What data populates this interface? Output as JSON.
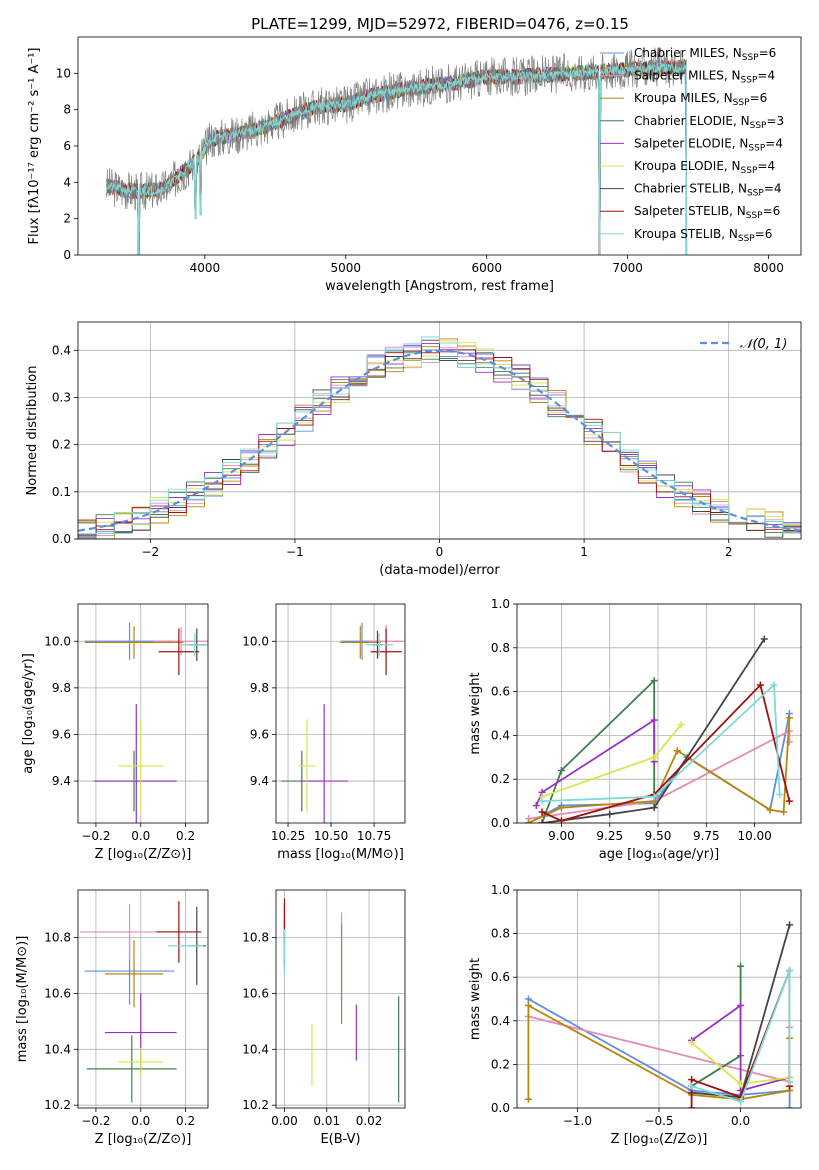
{
  "figure": {
    "title": "PLATE=1299, MJD=52972, FIBERID=0476, z=0.15"
  },
  "colors": {
    "Chabrier MILES": "#5b8fe0",
    "Salpeter MILES": "#e88ab5",
    "Kroupa MILES": "#b8860b",
    "Chabrier ELODIE": "#3f7f4f",
    "Salpeter ELODIE": "#9b30c0",
    "Kroupa ELODIE": "#d4e84a",
    "Chabrier STELIB": "#444444",
    "Salpeter STELIB": "#a01010",
    "Kroupa STELIB": "#7fd9d9",
    "data": "#808080",
    "fit_orange": "#e07a2a",
    "gaussian": "#5b8fe0"
  },
  "chart_data": [
    {
      "id": "spectrum",
      "type": "line",
      "xlabel": "wavelength [Angstrom, rest frame]",
      "ylabel": "Flux [fλ10⁻¹⁷ erg cm⁻² s⁻¹ A⁻¹]",
      "xlim": [
        3100,
        8230
      ],
      "ylim": [
        0,
        12
      ],
      "xticks": [
        4000,
        5000,
        6000,
        7000,
        8000
      ],
      "yticks": [
        0,
        2,
        4,
        6,
        8,
        10
      ],
      "grid": false,
      "legend_placement": "top-right",
      "legend": [
        {
          "label": "Chabrier MILES, N",
          "sub": "SSP",
          "tail": "=6",
          "model": "Chabrier MILES"
        },
        {
          "label": "Salpeter MILES, N",
          "sub": "SSP",
          "tail": "=4",
          "model": "Salpeter MILES"
        },
        {
          "label": "Kroupa MILES, N",
          "sub": "SSP",
          "tail": "=6",
          "model": "Kroupa MILES"
        },
        {
          "label": "Chabrier ELODIE, N",
          "sub": "SSP",
          "tail": "=3",
          "model": "Chabrier ELODIE"
        },
        {
          "label": "Salpeter ELODIE, N",
          "sub": "SSP",
          "tail": "=4",
          "model": "Salpeter ELODIE"
        },
        {
          "label": "Kroupa ELODIE, N",
          "sub": "SSP",
          "tail": "=4",
          "model": "Kroupa ELODIE"
        },
        {
          "label": "Chabrier STELIB, N",
          "sub": "SSP",
          "tail": "=4",
          "model": "Chabrier STELIB"
        },
        {
          "label": "Salpeter STELIB, N",
          "sub": "SSP",
          "tail": "=6",
          "model": "Salpeter STELIB"
        },
        {
          "label": "Kroupa STELIB, N",
          "sub": "SSP",
          "tail": "=6",
          "model": "Kroupa STELIB"
        }
      ],
      "continuum": [
        [
          3300,
          3.8
        ],
        [
          3500,
          3.5
        ],
        [
          3700,
          3.6
        ],
        [
          3850,
          4.6
        ],
        [
          3950,
          5.3
        ],
        [
          4050,
          6.4
        ],
        [
          4200,
          6.6
        ],
        [
          4400,
          7.0
        ],
        [
          4600,
          7.6
        ],
        [
          4800,
          8.2
        ],
        [
          5000,
          8.3
        ],
        [
          5200,
          8.8
        ],
        [
          5400,
          9.1
        ],
        [
          5600,
          9.3
        ],
        [
          5800,
          9.5
        ],
        [
          6000,
          9.8
        ],
        [
          6200,
          9.8
        ],
        [
          6400,
          9.9
        ],
        [
          6600,
          10.0
        ],
        [
          6800,
          10.1
        ],
        [
          7000,
          10.2
        ],
        [
          7200,
          10.3
        ],
        [
          7400,
          10.3
        ]
      ],
      "dips": [
        [
          3530,
          0
        ],
        [
          3933,
          2.0
        ],
        [
          3968,
          2.2
        ],
        [
          6800,
          0
        ],
        [
          7420,
          0
        ]
      ]
    },
    {
      "id": "residuals",
      "type": "histogram",
      "xlabel": "(data-model)/error",
      "ylabel": "Normed distribution",
      "xlim": [
        -2.5,
        2.5
      ],
      "ylim": [
        0,
        0.46
      ],
      "xticks": [
        -2,
        -1,
        0,
        1,
        2
      ],
      "yticks": [
        0.0,
        0.1,
        0.2,
        0.3,
        0.4
      ],
      "grid": true,
      "legend_placement": "top-right",
      "legend_label": "𝒩(0, 1)",
      "bin_width": 0.125
    },
    {
      "id": "z-age",
      "type": "errorbar",
      "xlabel": "Z [log₁₀(Z/Z⊙)]",
      "ylabel": "age  [log₁₀(age/yr)]",
      "xlim": [
        -0.28,
        0.3
      ],
      "ylim": [
        9.22,
        10.16
      ],
      "xticks": [
        -0.2,
        0.0,
        0.2
      ],
      "yticks": [
        9.4,
        9.6,
        9.8,
        10.0
      ],
      "grid": true,
      "points": [
        {
          "model": "Chabrier MILES",
          "x": -0.05,
          "y": 10.0,
          "xerr": 0.2,
          "yerr": 0.08
        },
        {
          "model": "Salpeter MILES",
          "x": 0.18,
          "y": 10.0,
          "xerr": 0.12,
          "yerr": 0.06
        },
        {
          "model": "Kroupa MILES",
          "x": -0.03,
          "y": 9.995,
          "xerr": 0.22,
          "yerr": 0.07
        },
        {
          "model": "Chabrier ELODIE",
          "x": -0.03,
          "y": 9.4,
          "xerr": 0.18,
          "yerr": 0.13
        },
        {
          "model": "Salpeter ELODIE",
          "x": -0.02,
          "y": 9.4,
          "xerr": 0.18,
          "yerr": 0.33
        },
        {
          "model": "Kroupa ELODIE",
          "x": 0.0,
          "y": 9.465,
          "xerr": 0.1,
          "yerr": 0.2
        },
        {
          "model": "Chabrier STELIB",
          "x": 0.25,
          "y": 9.985,
          "xerr": 0.04,
          "yerr": 0.07
        },
        {
          "model": "Salpeter STELIB",
          "x": 0.17,
          "y": 9.955,
          "xerr": 0.09,
          "yerr": 0.1
        },
        {
          "model": "Kroupa STELIB",
          "x": 0.24,
          "y": 9.985,
          "xerr": 0.06,
          "yerr": 0.05
        }
      ]
    },
    {
      "id": "mass-age",
      "type": "errorbar",
      "xlabel": "mass [log₁₀(M/M⊙)]",
      "ylabel": "",
      "xlim": [
        10.18,
        10.93
      ],
      "ylim": [
        9.22,
        10.16
      ],
      "xticks": [
        10.25,
        10.5,
        10.75
      ],
      "yticks": [
        9.4,
        9.6,
        9.8,
        10.0
      ],
      "grid": true,
      "points": [
        {
          "model": "Chabrier MILES",
          "x": 10.68,
          "y": 10.0,
          "xerr": 0.12,
          "yerr": 0.08
        },
        {
          "model": "Salpeter MILES",
          "x": 10.82,
          "y": 10.0,
          "xerr": 0.1,
          "yerr": 0.07
        },
        {
          "model": "Kroupa MILES",
          "x": 10.67,
          "y": 9.995,
          "xerr": 0.12,
          "yerr": 0.07
        },
        {
          "model": "Chabrier ELODIE",
          "x": 10.33,
          "y": 9.4,
          "xerr": 0.12,
          "yerr": 0.13
        },
        {
          "model": "Salpeter ELODIE",
          "x": 10.46,
          "y": 9.4,
          "xerr": 0.14,
          "yerr": 0.33
        },
        {
          "model": "Kroupa ELODIE",
          "x": 10.36,
          "y": 9.465,
          "xerr": 0.05,
          "yerr": 0.2
        },
        {
          "model": "Chabrier STELIB",
          "x": 10.77,
          "y": 9.985,
          "xerr": 0.03,
          "yerr": 0.06
        },
        {
          "model": "Salpeter STELIB",
          "x": 10.82,
          "y": 9.955,
          "xerr": 0.09,
          "yerr": 0.1
        },
        {
          "model": "Kroupa STELIB",
          "x": 10.78,
          "y": 9.985,
          "xerr": 0.08,
          "yerr": 0.05
        }
      ]
    },
    {
      "id": "age-weight",
      "type": "line",
      "xlabel": "age  [log₁₀(age/yr)]",
      "ylabel": "mass weight",
      "xlim": [
        8.77,
        10.24
      ],
      "ylim": [
        0,
        1.0
      ],
      "xticks": [
        9.0,
        9.25,
        9.5,
        9.75,
        10.0
      ],
      "yticks": [
        0.0,
        0.2,
        0.4,
        0.6,
        0.8,
        1.0
      ],
      "grid": true,
      "series": [
        {
          "model": "Chabrier MILES",
          "points": [
            [
              8.83,
              0.0
            ],
            [
              9.0,
              0.08
            ],
            [
              9.48,
              0.09
            ],
            [
              9.65,
              0.3
            ],
            [
              10.08,
              0.06
            ],
            [
              10.18,
              0.5
            ]
          ]
        },
        {
          "model": "Salpeter MILES",
          "points": [
            [
              8.83,
              0.02
            ],
            [
              9.48,
              0.1
            ],
            [
              10.18,
              0.42
            ],
            [
              10.18,
              0.37
            ]
          ]
        },
        {
          "model": "Kroupa MILES",
          "points": [
            [
              8.83,
              0.0
            ],
            [
              9.0,
              0.07
            ],
            [
              9.48,
              0.1
            ],
            [
              9.6,
              0.33
            ],
            [
              10.08,
              0.06
            ],
            [
              10.15,
              0.05
            ],
            [
              10.18,
              0.48
            ]
          ]
        },
        {
          "model": "Chabrier ELODIE",
          "points": [
            [
              8.9,
              0.0
            ],
            [
              9.0,
              0.24
            ],
            [
              9.48,
              0.65
            ],
            [
              9.48,
              0.12
            ]
          ]
        },
        {
          "model": "Salpeter ELODIE",
          "points": [
            [
              8.87,
              0.08
            ],
            [
              8.9,
              0.14
            ],
            [
              9.48,
              0.47
            ],
            [
              9.48,
              0.28
            ]
          ]
        },
        {
          "model": "Kroupa ELODIE",
          "points": [
            [
              8.9,
              0.12
            ],
            [
              9.48,
              0.3
            ],
            [
              9.62,
              0.45
            ]
          ]
        },
        {
          "model": "Chabrier STELIB",
          "points": [
            [
              8.9,
              0.0
            ],
            [
              9.25,
              0.04
            ],
            [
              9.48,
              0.07
            ],
            [
              10.05,
              0.84
            ]
          ]
        },
        {
          "model": "Salpeter STELIB",
          "points": [
            [
              8.9,
              0.05
            ],
            [
              9.0,
              0.01
            ],
            [
              9.48,
              0.13
            ],
            [
              10.03,
              0.63
            ],
            [
              10.18,
              0.1
            ]
          ]
        },
        {
          "model": "Kroupa STELIB",
          "points": [
            [
              8.9,
              0.1
            ],
            [
              9.48,
              0.12
            ],
            [
              10.1,
              0.63
            ],
            [
              10.13,
              0.13
            ]
          ]
        }
      ]
    },
    {
      "id": "z-mass",
      "type": "errorbar",
      "xlabel": "Z [log₁₀(Z/Z⊙)]",
      "ylabel": "mass [log₁₀(M/M⊙)]",
      "xlim": [
        -0.28,
        0.3
      ],
      "ylim": [
        10.19,
        10.97
      ],
      "xticks": [
        -0.2,
        0.0,
        0.2
      ],
      "yticks": [
        10.2,
        10.4,
        10.6,
        10.8
      ],
      "grid": true,
      "points": [
        {
          "model": "Chabrier MILES",
          "x": -0.05,
          "y": 10.68,
          "xerr": 0.2,
          "yerr": 0.12
        },
        {
          "model": "Salpeter MILES",
          "x": -0.05,
          "y": 10.82,
          "xerr": 0.22,
          "yerr": 0.1
        },
        {
          "model": "Kroupa MILES",
          "x": -0.03,
          "y": 10.67,
          "xerr": 0.13,
          "yerr": 0.12
        },
        {
          "model": "Chabrier ELODIE",
          "x": -0.04,
          "y": 10.33,
          "xerr": 0.2,
          "yerr": 0.12
        },
        {
          "model": "Salpeter ELODIE",
          "x": 0.0,
          "y": 10.46,
          "xerr": 0.16,
          "yerr": 0.14
        },
        {
          "model": "Kroupa ELODIE",
          "x": 0.0,
          "y": 10.355,
          "xerr": 0.1,
          "yerr": 0.05
        },
        {
          "model": "Chabrier STELIB",
          "x": 0.25,
          "y": 10.77,
          "xerr": 0.04,
          "yerr": 0.14
        },
        {
          "model": "Salpeter STELIB",
          "x": 0.17,
          "y": 10.82,
          "xerr": 0.1,
          "yerr": 0.11
        },
        {
          "model": "Kroupa STELIB",
          "x": 0.2,
          "y": 10.77,
          "xerr": 0.08,
          "yerr": 0.05
        }
      ]
    },
    {
      "id": "ebv-mass",
      "type": "errorbar",
      "xlabel": "E(B-V)",
      "ylabel": "",
      "xlim": [
        -0.002,
        0.0285
      ],
      "ylim": [
        10.19,
        10.97
      ],
      "xticks": [
        0.0,
        0.01,
        0.02
      ],
      "xtick_labels": [
        "0.00",
        "0.01",
        "0.02"
      ],
      "yticks": [
        10.2,
        10.4,
        10.6,
        10.8
      ],
      "grid": true,
      "points": [
        {
          "model": "Chabrier MILES",
          "x": 0.0,
          "y": 10.78,
          "xerr": 0,
          "yerr": 0.08
        },
        {
          "model": "Salpeter MILES",
          "x": 0.0135,
          "y": 10.73,
          "xerr": 0,
          "yerr": 0.16
        },
        {
          "model": "Kroupa MILES",
          "x": 0.0135,
          "y": 10.67,
          "xerr": 0,
          "yerr": 0.18
        },
        {
          "model": "Chabrier ELODIE",
          "x": 0.027,
          "y": 10.4,
          "xerr": 0,
          "yerr": 0.19
        },
        {
          "model": "Salpeter ELODIE",
          "x": 0.017,
          "y": 10.46,
          "xerr": 0,
          "yerr": 0.1
        },
        {
          "model": "Kroupa ELODIE",
          "x": 0.0065,
          "y": 10.38,
          "xerr": 0,
          "yerr": 0.11
        },
        {
          "model": "Chabrier STELIB",
          "x": 0.0,
          "y": 10.8,
          "xerr": 0,
          "yerr": 0.12
        },
        {
          "model": "Salpeter STELIB",
          "x": 0.0,
          "y": 10.86,
          "xerr": 0,
          "yerr": 0.08
        },
        {
          "model": "Kroupa STELIB",
          "x": 0.0,
          "y": 10.75,
          "xerr": 0,
          "yerr": 0.08
        }
      ]
    },
    {
      "id": "z-weight",
      "type": "line",
      "xlabel": "Z [log₁₀(Z/Z⊙)]",
      "ylabel": "mass weight",
      "xlim": [
        -1.37,
        0.37
      ],
      "ylim": [
        0,
        1.0
      ],
      "xticks": [
        -1.0,
        -0.5,
        0.0
      ],
      "yticks": [
        0.0,
        0.2,
        0.4,
        0.6,
        0.8,
        1.0
      ],
      "grid": true,
      "series": [
        {
          "model": "Chabrier MILES",
          "points": [
            [
              -1.3,
              0.5
            ],
            [
              -0.3,
              0.08
            ],
            [
              0.0,
              0.06
            ],
            [
              0.3,
              0.08
            ],
            [
              0.3,
              0.0
            ]
          ]
        },
        {
          "model": "Salpeter MILES",
          "points": [
            [
              -1.3,
              0.42
            ],
            [
              0.3,
              0.12
            ],
            [
              0.3,
              0.37
            ]
          ]
        },
        {
          "model": "Kroupa MILES",
          "points": [
            [
              -1.3,
              0.04
            ],
            [
              -1.3,
              0.47
            ],
            [
              -0.3,
              0.06
            ],
            [
              0.0,
              0.04
            ],
            [
              0.3,
              0.08
            ],
            [
              0.3,
              0.32
            ]
          ]
        },
        {
          "model": "Chabrier ELODIE",
          "points": [
            [
              -0.3,
              0.1
            ],
            [
              0.0,
              0.24
            ],
            [
              0.0,
              0.65
            ]
          ]
        },
        {
          "model": "Salpeter ELODIE",
          "points": [
            [
              -0.3,
              0.31
            ],
            [
              0.0,
              0.47
            ],
            [
              0.0,
              0.08
            ],
            [
              0.3,
              0.14
            ]
          ]
        },
        {
          "model": "Kroupa ELODIE",
          "points": [
            [
              -0.3,
              0.3
            ],
            [
              0.0,
              0.11
            ],
            [
              0.3,
              0.14
            ]
          ]
        },
        {
          "model": "Chabrier STELIB",
          "points": [
            [
              -0.3,
              0.07
            ],
            [
              0.0,
              0.05
            ],
            [
              0.3,
              0.84
            ]
          ]
        },
        {
          "model": "Salpeter STELIB",
          "points": [
            [
              -0.3,
              0.0
            ],
            [
              -0.3,
              0.13
            ],
            [
              0.0,
              0.05
            ],
            [
              0.3,
              0.63
            ],
            [
              0.3,
              0.1
            ]
          ]
        },
        {
          "model": "Kroupa STELIB",
          "points": [
            [
              -0.3,
              0.1
            ],
            [
              0.0,
              0.03
            ],
            [
              0.3,
              0.63
            ],
            [
              0.3,
              0.12
            ]
          ]
        }
      ]
    }
  ]
}
